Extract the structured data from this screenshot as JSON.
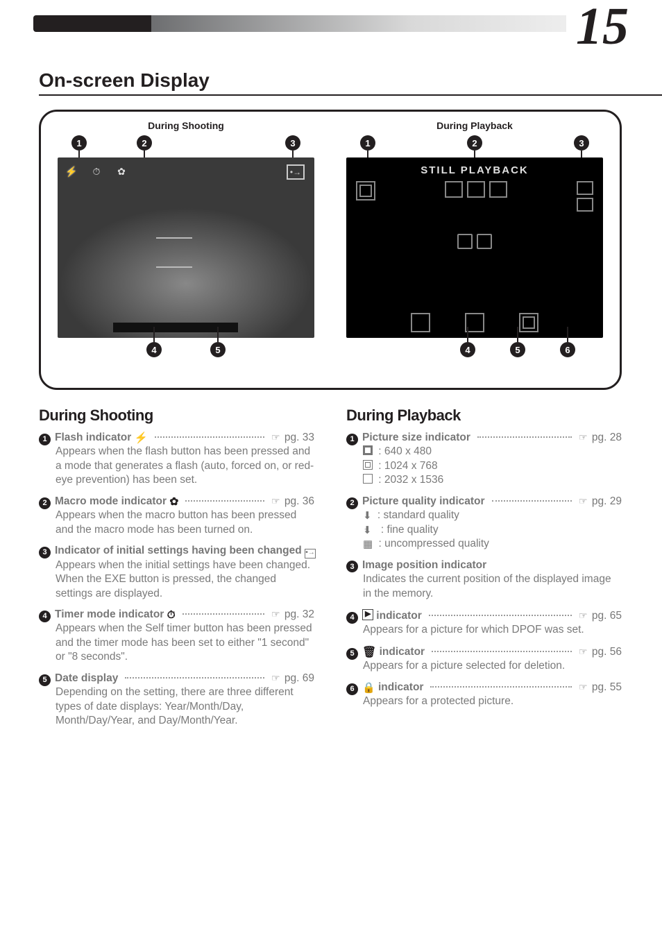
{
  "chapter_number": "15",
  "section_title": "On-screen Display",
  "figure": {
    "shooting_title": "During Shooting",
    "playback_title": "During Playback",
    "playback_banner": "STILL PLAYBACK",
    "shoot_callouts_top": [
      "1",
      "2",
      "3"
    ],
    "shoot_callouts_bot": [
      "4",
      "5"
    ],
    "pb_callouts_top": [
      "1",
      "2",
      "3"
    ],
    "pb_callouts_bot": [
      "4",
      "5",
      "6"
    ]
  },
  "left": {
    "heading": "During Shooting",
    "items": [
      {
        "num": "1",
        "label_pre": "Flash indicator ",
        "label_icon": "flash",
        "page": "33",
        "body": "Appears when the flash button has been pressed and a mode that generates a flash (auto, forced on, or red-eye prevention) has been set."
      },
      {
        "num": "2",
        "label_pre": "Macro mode indicator ",
        "label_icon": "flower",
        "page": "36",
        "body": "Appears when the macro button has been pressed and the macro mode has been turned on."
      },
      {
        "num": "3",
        "label_pre": "Indicator of initial settings having been changed ",
        "label_icon": "box-arrow",
        "page": null,
        "body": "Appears when the initial settings have been changed. When the EXE button is pressed, the changed settings are displayed."
      },
      {
        "num": "4",
        "label_pre": "Timer mode indicator ",
        "label_icon": "timer",
        "page": "32",
        "body": "Appears when the Self timer button has been pressed and the timer mode has been set to either \"1 second\" or \"8 seconds\"."
      },
      {
        "num": "5",
        "label_pre": "Date display",
        "label_icon": null,
        "page": "69",
        "body": "Depending on the setting, there are three different types of date displays: Year/Month/Day, Month/Day/Year, and Day/Month/Year."
      }
    ]
  },
  "right": {
    "heading": "During Playback",
    "items": [
      {
        "num": "1",
        "label_pre": "Picture size indicator",
        "label_icon": null,
        "page": "28",
        "body_lines": [
          {
            "icon": "sq-fill",
            "text": ": 640 x 480"
          },
          {
            "icon": "sq-mid",
            "text": ": 1024 x 768"
          },
          {
            "icon": "sq",
            "text": ": 2032 x 1536"
          }
        ]
      },
      {
        "num": "2",
        "label_pre": "Picture quality indicator",
        "label_icon": null,
        "page": "29",
        "body_lines": [
          {
            "icon": "pin1",
            "text": ": standard quality"
          },
          {
            "icon": "pin2",
            "text": ": fine quality"
          },
          {
            "icon": "pin3",
            "text": ": uncompressed quality"
          }
        ]
      },
      {
        "num": "3",
        "label_pre": "Image position indicator",
        "label_icon": null,
        "page": null,
        "body": "Indicates the current position of the displayed image in the memory."
      },
      {
        "num": "4",
        "label_pre": "",
        "label_icon": "dpof",
        "label_post": " indicator",
        "page": "65",
        "body": "Appears for a picture for which DPOF was set."
      },
      {
        "num": "5",
        "label_pre": "",
        "label_icon": "trash",
        "label_post": " indicator",
        "page": "56",
        "body": "Appears for a picture selected for deletion."
      },
      {
        "num": "6",
        "label_pre": "",
        "label_icon": "lock",
        "label_post": " indicator",
        "page": "55",
        "body": "Appears for a protected picture."
      }
    ]
  }
}
